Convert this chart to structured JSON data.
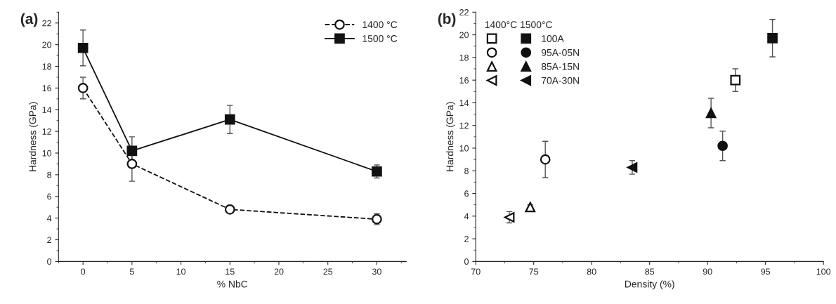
{
  "chart_data": [
    {
      "type": "line",
      "title": "(a)",
      "xlabel": "% NbC",
      "ylabel": "Hardness (GPa)",
      "x": [
        0,
        5,
        15,
        30
      ],
      "xlim": [
        -2.5,
        33
      ],
      "xticks": [
        0,
        5,
        10,
        15,
        20,
        25,
        30
      ],
      "ylim": [
        0,
        23
      ],
      "yticks": [
        0,
        2,
        4,
        6,
        8,
        10,
        12,
        14,
        16,
        18,
        20,
        22
      ],
      "grid": false,
      "legend": "top right",
      "series": [
        {
          "name": "1400 °C",
          "color": "#111111",
          "values": [
            16,
            9,
            4.8,
            3.9
          ],
          "errors": [
            1,
            1.6,
            0.2,
            0.5
          ],
          "marker": "circle",
          "line_style": "dashed"
        },
        {
          "name": "1500 °C",
          "color": "#111111",
          "values": [
            19.7,
            10.2,
            13.1,
            8.3
          ],
          "errors": [
            1.65,
            1.3,
            1.3,
            0.6
          ],
          "marker": "square",
          "line_style": "solid"
        }
      ]
    },
    {
      "type": "scatter",
      "title": "(b)",
      "xlabel": "Density (%)",
      "ylabel": "Hardness (GPa)",
      "xlim": [
        70,
        100
      ],
      "xticks": [
        70,
        75,
        80,
        85,
        90,
        95,
        100
      ],
      "ylim": [
        0,
        22
      ],
      "yticks": [
        0,
        2,
        4,
        6,
        8,
        10,
        12,
        14,
        16,
        18,
        20,
        22
      ],
      "grid": false,
      "legend": "top left",
      "legend_title": "1400°C 1500°C",
      "series": [
        {
          "color": "#111111",
          "x": [
            92.4
          ],
          "values": [
            16
          ],
          "errors": [
            1
          ],
          "marker": "square"
        },
        {
          "name": "100A",
          "color": "#111111",
          "x": [
            95.6
          ],
          "values": [
            19.7
          ],
          "errors": [
            1.65
          ],
          "marker": "square"
        },
        {
          "color": "#111111",
          "x": [
            76
          ],
          "values": [
            9
          ],
          "errors": [
            1.6
          ],
          "marker": "circle"
        },
        {
          "name": "95A-05N",
          "color": "#111111",
          "x": [
            91.3
          ],
          "values": [
            10.2
          ],
          "errors": [
            1.3
          ],
          "marker": "circle"
        },
        {
          "color": "#111111",
          "x": [
            74.7
          ],
          "values": [
            4.8
          ],
          "errors": [
            0.2
          ],
          "marker": "triangle"
        },
        {
          "name": "85A-15N",
          "color": "#111111",
          "x": [
            90.3
          ],
          "values": [
            13.1
          ],
          "errors": [
            1.3
          ],
          "marker": "triangle"
        },
        {
          "color": "#111111",
          "x": [
            72.9
          ],
          "values": [
            3.9
          ],
          "errors": [
            0.5
          ],
          "marker": "triangle-left"
        },
        {
          "name": "70A-30N",
          "color": "#111111",
          "x": [
            83.5
          ],
          "values": [
            8.3
          ],
          "errors": [
            0.6
          ],
          "marker": "triangle-left"
        }
      ]
    }
  ]
}
